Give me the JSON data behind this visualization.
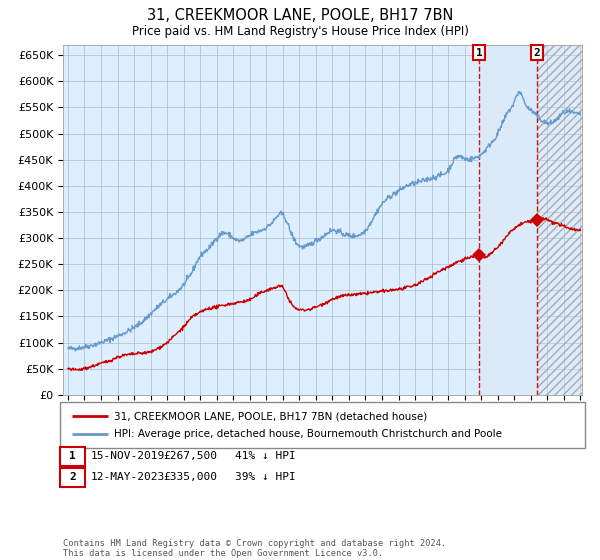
{
  "title": "31, CREEKMOOR LANE, POOLE, BH17 7BN",
  "subtitle": "Price paid vs. HM Land Registry's House Price Index (HPI)",
  "legend_red": "31, CREEKMOOR LANE, POOLE, BH17 7BN (detached house)",
  "legend_blue": "HPI: Average price, detached house, Bournemouth Christchurch and Poole",
  "annotation1_date": "15-NOV-2019",
  "annotation1_price": "£267,500",
  "annotation1_hpi": "41% ↓ HPI",
  "annotation2_date": "12-MAY-2023",
  "annotation2_price": "£335,000",
  "annotation2_hpi": "39% ↓ HPI",
  "footer": "Contains HM Land Registry data © Crown copyright and database right 2024.\nThis data is licensed under the Open Government Licence v3.0.",
  "ylim": [
    0,
    670000
  ],
  "yticks": [
    0,
    50000,
    100000,
    150000,
    200000,
    250000,
    300000,
    350000,
    400000,
    450000,
    500000,
    550000,
    600000,
    650000
  ],
  "year_start": 1995,
  "year_end": 2026,
  "purchase1_year": 2019.88,
  "purchase1_value": 267500,
  "purchase2_year": 2023.37,
  "purchase2_value": 335000,
  "red_color": "#cc0000",
  "blue_color": "#6699cc",
  "bg_plot": "#ddeeff",
  "bg_highlight": "#daeaf8",
  "grid_color": "#aabbcc",
  "hpi_anchors_x": [
    1995.0,
    1997.0,
    1998.5,
    1999.5,
    2000.5,
    2001.5,
    2002.5,
    2003.0,
    2003.5,
    2004.0,
    2004.5,
    2005.0,
    2005.5,
    2006.0,
    2007.0,
    2007.5,
    2008.0,
    2008.5,
    2009.0,
    2009.5,
    2010.0,
    2010.5,
    2011.0,
    2011.5,
    2012.0,
    2012.5,
    2013.0,
    2013.5,
    2014.0,
    2014.5,
    2015.0,
    2015.5,
    2016.0,
    2016.5,
    2017.0,
    2017.5,
    2018.0,
    2018.5,
    2019.0,
    2019.5,
    2020.0,
    2020.5,
    2021.0,
    2021.3,
    2021.6,
    2022.0,
    2022.3,
    2022.5,
    2022.7,
    2023.0,
    2023.5,
    2024.0,
    2024.5,
    2025.0,
    2025.5,
    2026.0
  ],
  "hpi_anchors_y": [
    88000,
    100000,
    120000,
    140000,
    170000,
    195000,
    235000,
    265000,
    280000,
    300000,
    310000,
    300000,
    295000,
    305000,
    320000,
    335000,
    345000,
    310000,
    285000,
    285000,
    295000,
    305000,
    315000,
    310000,
    305000,
    305000,
    315000,
    340000,
    365000,
    380000,
    390000,
    400000,
    405000,
    410000,
    415000,
    420000,
    430000,
    455000,
    452000,
    452000,
    460000,
    478000,
    500000,
    520000,
    540000,
    560000,
    580000,
    570000,
    555000,
    545000,
    530000,
    520000,
    525000,
    540000,
    540000,
    538000
  ],
  "red_anchors_x": [
    1995.0,
    1996.0,
    1997.0,
    1997.5,
    1998.0,
    1998.5,
    1999.0,
    1999.5,
    2000.0,
    2000.5,
    2001.0,
    2001.5,
    2002.0,
    2002.5,
    2003.0,
    2003.5,
    2004.0,
    2004.5,
    2005.0,
    2005.5,
    2006.0,
    2006.5,
    2007.0,
    2007.5,
    2008.0,
    2008.5,
    2009.0,
    2009.5,
    2010.0,
    2010.5,
    2011.0,
    2011.5,
    2012.0,
    2012.5,
    2013.0,
    2013.5,
    2014.0,
    2014.5,
    2015.0,
    2015.5,
    2016.0,
    2016.5,
    2017.0,
    2017.5,
    2018.0,
    2018.3,
    2018.6,
    2019.0,
    2019.5,
    2019.88,
    2020.2,
    2020.5,
    2021.0,
    2021.5,
    2022.0,
    2022.5,
    2023.0,
    2023.37,
    2023.7,
    2024.0,
    2024.5,
    2025.0,
    2025.5,
    2026.0
  ],
  "red_anchors_y": [
    50000,
    50000,
    60000,
    65000,
    72000,
    76000,
    78000,
    80000,
    82000,
    90000,
    100000,
    115000,
    130000,
    148000,
    158000,
    165000,
    168000,
    172000,
    175000,
    178000,
    182000,
    192000,
    200000,
    205000,
    205000,
    175000,
    163000,
    163000,
    168000,
    175000,
    183000,
    188000,
    191000,
    192000,
    194000,
    196000,
    198000,
    200000,
    202000,
    205000,
    210000,
    218000,
    228000,
    237000,
    245000,
    250000,
    255000,
    260000,
    265000,
    267500,
    263000,
    268000,
    282000,
    302000,
    318000,
    328000,
    332000,
    335000,
    338000,
    335000,
    328000,
    323000,
    318000,
    315000
  ]
}
